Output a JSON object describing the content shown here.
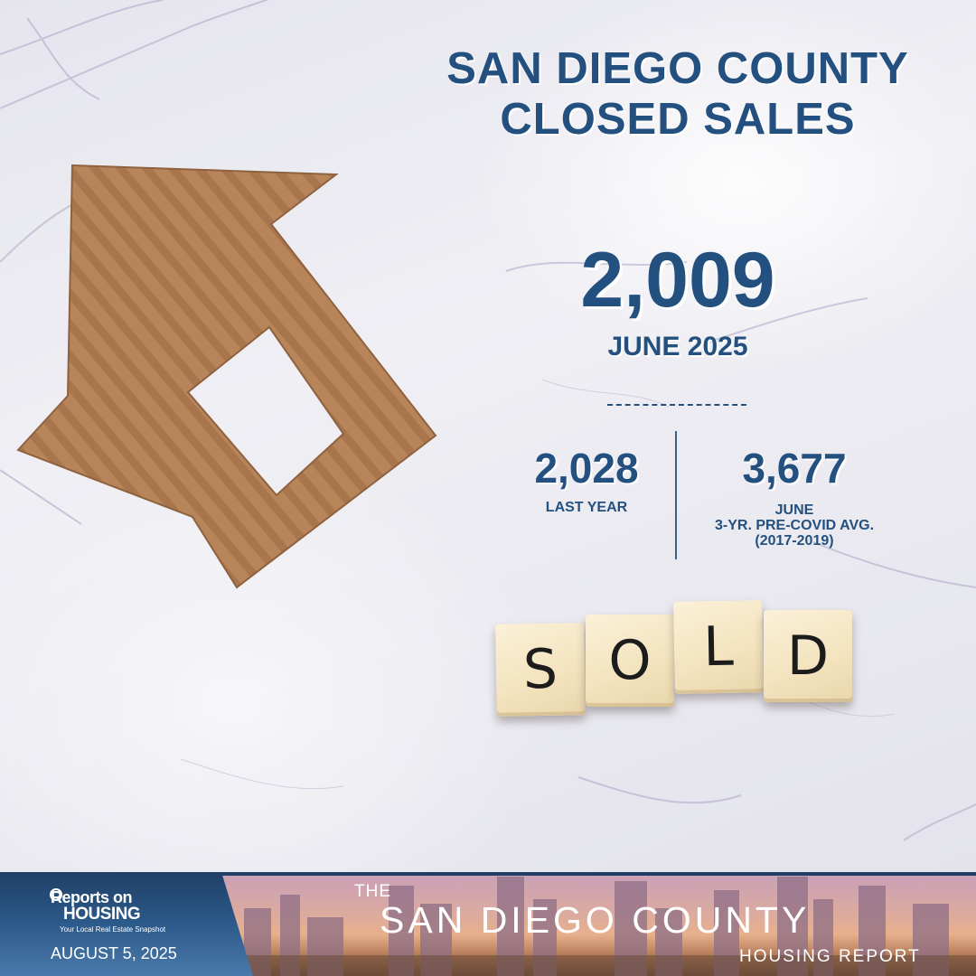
{
  "headline": {
    "line1": "SAN DIEGO COUNTY",
    "line2": "CLOSED SALES"
  },
  "current": {
    "value": "2,009",
    "period": "JUNE 2025",
    "divider": "____________"
  },
  "comparisons": [
    {
      "value": "2,028",
      "label": "LAST YEAR"
    },
    {
      "value": "3,677",
      "label": "JUNE\n3-YR. PRE-COVID AVG.\n(2017-2019)"
    }
  ],
  "tiles": [
    "S",
    "O",
    "L",
    "D"
  ],
  "footer": {
    "brand_line1": "Reports on",
    "brand_line2": "HOUSING",
    "brand_tagline": "Your Local Real Estate Snapshot",
    "date": "AUGUST 5, 2025",
    "report_prefix": "THE",
    "report_name": "SAN DIEGO COUNTY",
    "report_suffix": "HOUSING REPORT"
  },
  "colors": {
    "accent": "#23507f",
    "footer_panel": "#1f3f66",
    "cardboard": "#b9865b"
  },
  "icons": {
    "house": "cardboard-house-icon",
    "brand": "reports-on-housing-logo"
  }
}
